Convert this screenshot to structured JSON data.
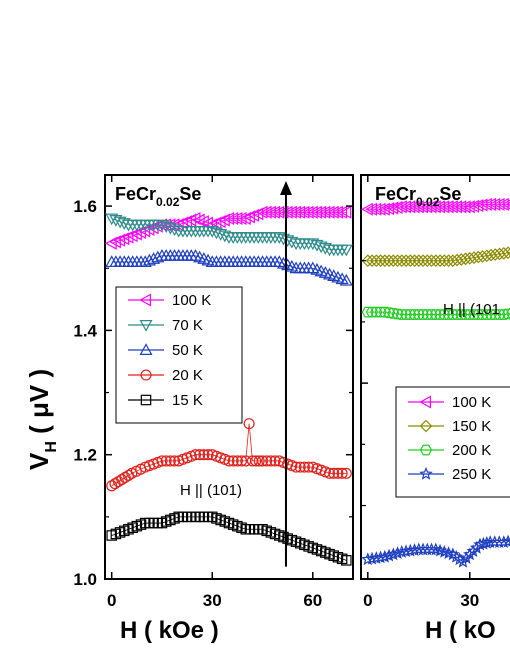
{
  "chart_data": [
    {
      "type": "scatter",
      "panel": "left",
      "title_main": "FeCr",
      "title_sub": "0.02",
      "title_tail": "Se",
      "xlabel": "H ( kOe )",
      "ylabel_main": "V",
      "ylabel_sub": "H",
      "ylabel_tail": " ( μV )",
      "xlim": [
        -2,
        72
      ],
      "ylim": [
        1.0,
        1.65
      ],
      "xticks": [
        0,
        30,
        60
      ],
      "yticks": [
        1.0,
        1.2,
        1.4,
        1.6
      ],
      "annotation": "H || (101)",
      "arrow": {
        "x": 52,
        "y_from": 1.02,
        "y_to": 1.65
      },
      "legend_position": "middle-left",
      "series": [
        {
          "name": "100 K",
          "color": "#ff00ff",
          "marker": "triangle-left",
          "x": [
            0,
            5,
            10,
            15,
            20,
            25,
            30,
            35,
            40,
            45,
            50,
            55,
            60,
            65,
            70
          ],
          "y": [
            1.54,
            1.55,
            1.56,
            1.57,
            1.57,
            1.58,
            1.57,
            1.58,
            1.58,
            1.59,
            1.59,
            1.59,
            1.59,
            1.59,
            1.59
          ]
        },
        {
          "name": "70 K",
          "color": "#2e8b8b",
          "marker": "triangle-down",
          "x": [
            0,
            5,
            10,
            15,
            20,
            25,
            30,
            35,
            40,
            45,
            50,
            55,
            60,
            65,
            70
          ],
          "y": [
            1.58,
            1.57,
            1.57,
            1.57,
            1.56,
            1.56,
            1.56,
            1.55,
            1.55,
            1.55,
            1.55,
            1.54,
            1.54,
            1.53,
            1.53
          ]
        },
        {
          "name": "50 K",
          "color": "#1f3fbf",
          "marker": "triangle-up",
          "x": [
            0,
            5,
            10,
            15,
            20,
            25,
            30,
            35,
            40,
            45,
            50,
            55,
            60,
            65,
            70
          ],
          "y": [
            1.51,
            1.51,
            1.51,
            1.52,
            1.52,
            1.52,
            1.51,
            1.51,
            1.51,
            1.51,
            1.51,
            1.5,
            1.5,
            1.49,
            1.48
          ]
        },
        {
          "name": "20 K",
          "color": "#e0201b",
          "marker": "circle",
          "x": [
            0,
            3,
            6,
            10,
            15,
            20,
            25,
            30,
            35,
            40,
            41,
            42,
            45,
            50,
            55,
            60,
            65,
            70
          ],
          "y": [
            1.15,
            1.16,
            1.17,
            1.18,
            1.19,
            1.19,
            1.2,
            1.2,
            1.19,
            1.19,
            1.25,
            1.19,
            1.19,
            1.19,
            1.18,
            1.18,
            1.17,
            1.17
          ]
        },
        {
          "name": "15 K",
          "color": "#000000",
          "marker": "square",
          "x": [
            0,
            5,
            10,
            15,
            20,
            25,
            30,
            35,
            40,
            45,
            50,
            55,
            60,
            65,
            70
          ],
          "y": [
            1.07,
            1.08,
            1.09,
            1.09,
            1.1,
            1.1,
            1.1,
            1.09,
            1.08,
            1.08,
            1.07,
            1.06,
            1.05,
            1.04,
            1.03
          ]
        }
      ]
    },
    {
      "type": "scatter",
      "panel": "right",
      "title_main": "FeCr",
      "title_sub": "0.02",
      "title_tail": "Se",
      "xlabel": "H ( kO",
      "xlim": [
        -2,
        48
      ],
      "ylim": [
        0.7,
        2.35
      ],
      "xticks": [
        0,
        30
      ],
      "yticks": [
        1.5
      ],
      "annotation": "H || (101",
      "legend_position": "bottom-right",
      "series": [
        {
          "name": "100 K",
          "color": "#ff00ff",
          "marker": "triangle-left",
          "x": [
            0,
            5,
            10,
            15,
            20,
            25,
            30,
            35,
            40,
            45
          ],
          "y": [
            2.21,
            2.21,
            2.22,
            2.22,
            2.22,
            2.22,
            2.22,
            2.23,
            2.23,
            2.23
          ]
        },
        {
          "name": "150 K",
          "color": "#8b8b00",
          "marker": "diamond",
          "x": [
            0,
            5,
            10,
            15,
            20,
            25,
            30,
            35,
            40,
            45
          ],
          "y": [
            2.0,
            2.0,
            2.0,
            2.0,
            2.0,
            2.0,
            2.01,
            2.02,
            2.03,
            2.04
          ]
        },
        {
          "name": "200 K",
          "color": "#22cc22",
          "marker": "hexagon",
          "x": [
            0,
            5,
            10,
            15,
            20,
            25,
            30,
            35,
            40,
            45
          ],
          "y": [
            1.79,
            1.79,
            1.78,
            1.78,
            1.78,
            1.78,
            1.78,
            1.78,
            1.78,
            1.79
          ]
        },
        {
          "name": "250 K",
          "color": "#1f3fbf",
          "marker": "star",
          "x": [
            0,
            5,
            10,
            15,
            20,
            25,
            28,
            30,
            33,
            36,
            40,
            45
          ],
          "y": [
            0.78,
            0.79,
            0.81,
            0.82,
            0.82,
            0.8,
            0.77,
            0.8,
            0.84,
            0.85,
            0.85,
            0.86
          ]
        }
      ]
    }
  ]
}
